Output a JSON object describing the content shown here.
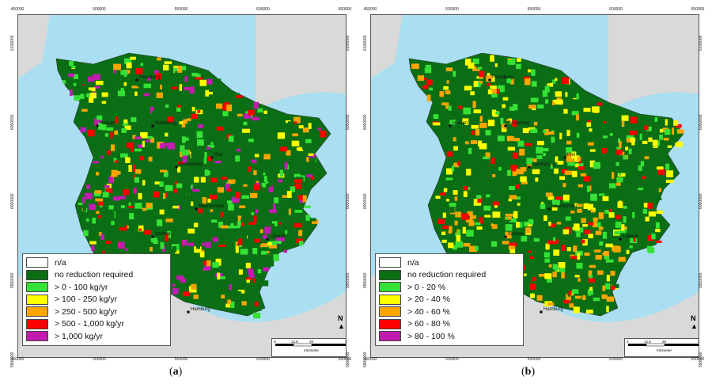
{
  "panels": [
    {
      "id": "a",
      "caption": "a",
      "legend": [
        {
          "label": "n/a",
          "color": "#ffffff"
        },
        {
          "label": "no reduction required",
          "color": "#0a6e14"
        },
        {
          "label": "> 0 - 100 kg/yr",
          "color": "#35e135"
        },
        {
          "label": "> 100 - 250 kg/yr",
          "color": "#ffff00"
        },
        {
          "label": "> 250 - 500 kg/yr",
          "color": "#ffa500"
        },
        {
          "label": "> 500 - 1,000 kg/yr",
          "color": "#ff0000"
        },
        {
          "label": "> 1,000 kg/yr",
          "color": "#c21bb0"
        }
      ]
    },
    {
      "id": "b",
      "caption": "b",
      "legend": [
        {
          "label": "n/a",
          "color": "#ffffff"
        },
        {
          "label": "no reduction required",
          "color": "#0a6e14"
        },
        {
          "label": "> 0 - 20 %",
          "color": "#35e135"
        },
        {
          "label": "> 20 - 40 %",
          "color": "#ffff00"
        },
        {
          "label": "> 40 - 60 %",
          "color": "#ffa500"
        },
        {
          "label": "> 60 - 80 %",
          "color": "#ff0000"
        },
        {
          "label": "> 80 - 100 %",
          "color": "#c21bb0"
        }
      ]
    }
  ],
  "axis": {
    "x_ticks": [
      "450000",
      "500000",
      "550000",
      "600000",
      "650000"
    ],
    "y_ticks": [
      "6100000",
      "6050000",
      "6000000",
      "5950000",
      "5900000"
    ]
  },
  "cities": [
    "Flensburg",
    "Husum",
    "Schleswig",
    "Rendsburg",
    "Kiel",
    "Neumünster",
    "Itzehoe",
    "Lübeck",
    "Hamburg"
  ],
  "scalebar": {
    "labels": [
      "0",
      "12.5",
      "25",
      "50"
    ],
    "unit": "Kilometer"
  },
  "north_label": "N",
  "colors": {
    "sea": "#a9dff0",
    "land_outside": "#d9d9d9",
    "no_reduction": "#0a6e14",
    "class1": "#35e135",
    "class2": "#ffff00",
    "class3": "#ffa500",
    "class4": "#ff0000",
    "class5": "#c21bb0"
  }
}
